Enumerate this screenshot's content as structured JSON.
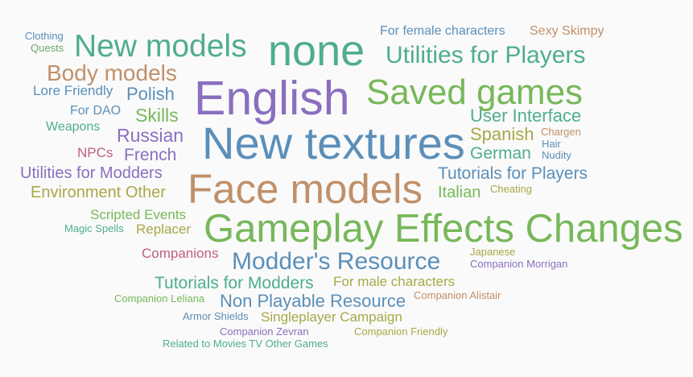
{
  "words": [
    {
      "text": "Clothing",
      "color": "#5b8fb9"
    },
    {
      "text": "Quests",
      "color": "#6aa86a"
    },
    {
      "text": "New models",
      "color": "#4fae8a"
    },
    {
      "text": "none",
      "color": "#4fae8a"
    },
    {
      "text": "For female characters",
      "color": "#5b8fb9"
    },
    {
      "text": "Sexy Skimpy",
      "color": "#c0906a"
    },
    {
      "text": "Utilities for Players",
      "color": "#4fae8a"
    },
    {
      "text": "Body models",
      "color": "#c0906a"
    },
    {
      "text": "English",
      "color": "#8a6fbf"
    },
    {
      "text": "Saved games",
      "color": "#77b85a"
    },
    {
      "text": "Lore Friendly",
      "color": "#5b8fb9"
    },
    {
      "text": "Polish",
      "color": "#5b8fb9"
    },
    {
      "text": "For DAO",
      "color": "#5b8fb9"
    },
    {
      "text": "Skills",
      "color": "#77b85a"
    },
    {
      "text": "User Interface",
      "color": "#4fae8a"
    },
    {
      "text": "Weapons",
      "color": "#4fae8a"
    },
    {
      "text": "Russian",
      "color": "#8a6fbf"
    },
    {
      "text": "New textures",
      "color": "#5b8fb9"
    },
    {
      "text": "Spanish",
      "color": "#a8a848"
    },
    {
      "text": "Chargen",
      "color": "#c0906a"
    },
    {
      "text": "Hair",
      "color": "#5b8fb9"
    },
    {
      "text": "NPCs",
      "color": "#c0607a"
    },
    {
      "text": "French",
      "color": "#8a6fbf"
    },
    {
      "text": "German",
      "color": "#4fae8a"
    },
    {
      "text": "Nudity",
      "color": "#5b8fb9"
    },
    {
      "text": "Utilities for Modders",
      "color": "#8a6fbf"
    },
    {
      "text": "Tutorials for Players",
      "color": "#5b8fb9"
    },
    {
      "text": "Face models",
      "color": "#c0906a"
    },
    {
      "text": "Environment Other",
      "color": "#a8a848"
    },
    {
      "text": "Italian",
      "color": "#77b85a"
    },
    {
      "text": "Cheating",
      "color": "#a8a848"
    },
    {
      "text": "Scripted Events",
      "color": "#77b85a"
    },
    {
      "text": "Magic Spells",
      "color": "#4fae8a"
    },
    {
      "text": "Replacer",
      "color": "#a8a848"
    },
    {
      "text": "Gameplay Effects Changes",
      "color": "#77b85a"
    },
    {
      "text": "Japanese",
      "color": "#a8a848"
    },
    {
      "text": "Companions",
      "color": "#c0607a"
    },
    {
      "text": "Modder's Resource",
      "color": "#5b8fb9"
    },
    {
      "text": "Companion Morrigan",
      "color": "#8a6fbf"
    },
    {
      "text": "Tutorials for Modders",
      "color": "#4fae8a"
    },
    {
      "text": "For male characters",
      "color": "#a8a848"
    },
    {
      "text": "Companion Leliana",
      "color": "#77b85a"
    },
    {
      "text": "Non Playable Resource",
      "color": "#5b8fb9"
    },
    {
      "text": "Companion Alistair",
      "color": "#c0906a"
    },
    {
      "text": "Armor Shields",
      "color": "#5b8fb9"
    },
    {
      "text": "Singleplayer Campaign",
      "color": "#a8a848"
    },
    {
      "text": "Companion Zevran",
      "color": "#8a6fbf"
    },
    {
      "text": "Companion Friendly",
      "color": "#a8a848"
    },
    {
      "text": "Related to Movies TV Other Games",
      "color": "#4fae8a"
    }
  ]
}
